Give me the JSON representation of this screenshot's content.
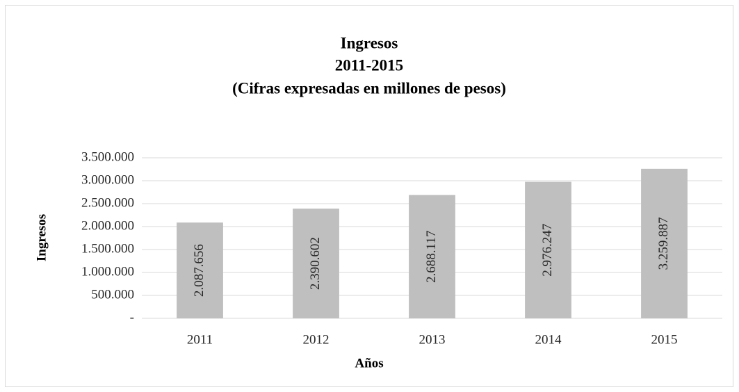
{
  "chart_data": {
    "type": "bar",
    "title": [
      "Ingresos",
      "2011-2015",
      "(Cifras expresadas en millones de pesos)"
    ],
    "x_label": "Años",
    "y_label": "Ingresos",
    "categories": [
      "2011",
      "2012",
      "2013",
      "2014",
      "2015"
    ],
    "values": [
      2087656,
      2390602,
      2688117,
      2976247,
      3259887
    ],
    "value_labels": [
      "2.087.656",
      "2.390.602",
      "2.688.117",
      "2.976.247",
      "3.259.887"
    ],
    "color": "#bfbfbf",
    "ylim": [
      0,
      3500000
    ],
    "yticks": [
      {
        "value": 0,
        "label": "-"
      },
      {
        "value": 500000,
        "label": "500.000"
      },
      {
        "value": 1000000,
        "label": "1.000.000"
      },
      {
        "value": 1500000,
        "label": "1.500.000"
      },
      {
        "value": 2000000,
        "label": "2.000.000"
      },
      {
        "value": 2500000,
        "label": "2.500.000"
      },
      {
        "value": 3000000,
        "label": "3.000.000"
      },
      {
        "value": 3500000,
        "label": "3.500.000"
      }
    ],
    "grid": true
  }
}
